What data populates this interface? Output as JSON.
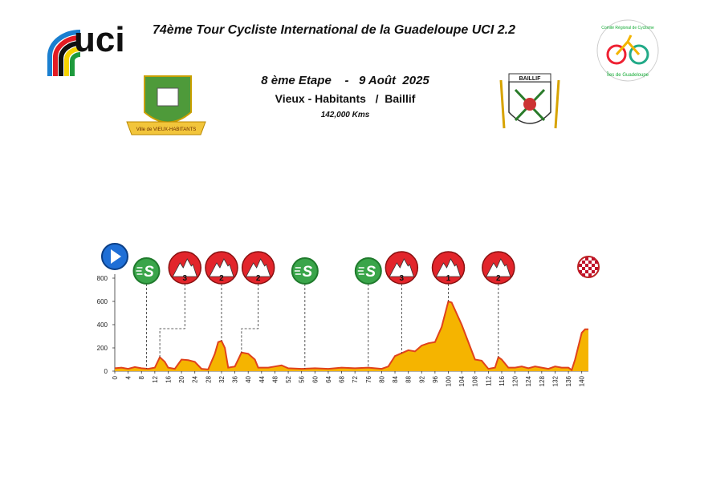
{
  "header": {
    "title": "74ème Tour Cycliste International de la Guadeloupe UCI 2.2",
    "stage": "8 ème Etape    -   9 Août  2025",
    "route": "Vieux - Habitants   /  Baillif",
    "distance": "142,000 Kms"
  },
  "logos": {
    "uci": "uci",
    "left_town": "Ville de VIEUX-HABITANTS",
    "right_town": "BAILLIF",
    "committee_top": "Comité Régional de Cyclisme",
    "committee_bottom": "Îles de Guadeloupe"
  },
  "chart_data": {
    "type": "area",
    "color": "#f5b400",
    "line_color": "#e0421c",
    "x": [
      0,
      2,
      4,
      6,
      8,
      10,
      12,
      13.5,
      15,
      16,
      18,
      20,
      22,
      24,
      26,
      28,
      30,
      31,
      32,
      33,
      34,
      36,
      38,
      40,
      42,
      43,
      46,
      48,
      50,
      52,
      56,
      60,
      64,
      68,
      72,
      76,
      80,
      82,
      84,
      88,
      90,
      92,
      94,
      96,
      98,
      100,
      101,
      104,
      106,
      108,
      110,
      112,
      114,
      115,
      116,
      118,
      120,
      122,
      124,
      126,
      128,
      130,
      132,
      134,
      136,
      137,
      138,
      140,
      141,
      142
    ],
    "values": [
      25,
      30,
      20,
      35,
      25,
      20,
      30,
      120,
      80,
      30,
      20,
      100,
      95,
      80,
      20,
      15,
      150,
      250,
      260,
      200,
      30,
      40,
      160,
      150,
      100,
      30,
      30,
      40,
      50,
      25,
      20,
      25,
      20,
      30,
      25,
      30,
      20,
      40,
      130,
      180,
      170,
      220,
      240,
      250,
      380,
      600,
      590,
      400,
      250,
      100,
      90,
      20,
      30,
      120,
      100,
      30,
      30,
      40,
      25,
      40,
      30,
      20,
      40,
      30,
      30,
      10,
      100,
      330,
      360,
      360
    ],
    "xlim": [
      0,
      142
    ],
    "ylim": [
      0,
      800
    ],
    "xticks": [
      0,
      4,
      8,
      12,
      16,
      20,
      24,
      28,
      32,
      36,
      40,
      44,
      48,
      52,
      56,
      60,
      64,
      68,
      72,
      76,
      80,
      84,
      88,
      92,
      96,
      100,
      104,
      108,
      112,
      116,
      120,
      124,
      128,
      132,
      136,
      140
    ],
    "yticks": [
      0,
      200,
      400,
      600,
      800
    ],
    "markers": [
      {
        "type": "start",
        "km": 0
      },
      {
        "type": "sprint",
        "label": "S",
        "km": 9.5
      },
      {
        "type": "climb",
        "label": "3",
        "km": 21,
        "summit": 13.5
      },
      {
        "type": "climb",
        "label": "2",
        "km": 32
      },
      {
        "type": "climb",
        "label": "2",
        "km": 43,
        "summit": 38
      },
      {
        "type": "sprint",
        "label": "S",
        "km": 57
      },
      {
        "type": "sprint",
        "label": "S",
        "km": 76
      },
      {
        "type": "climb",
        "label": "3",
        "km": 86
      },
      {
        "type": "climb",
        "label": "1",
        "km": 100
      },
      {
        "type": "climb",
        "label": "2",
        "km": 115
      },
      {
        "type": "finish",
        "km": 142
      }
    ]
  }
}
